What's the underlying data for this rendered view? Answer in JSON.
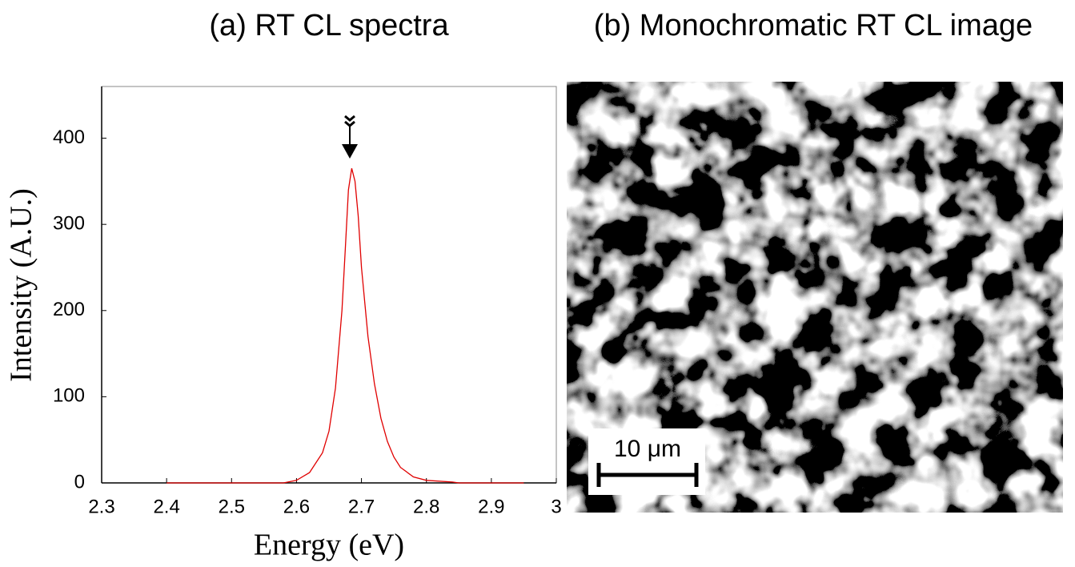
{
  "chart_data": [
    {
      "type": "line",
      "title": "(a) RT CL spectra",
      "xlabel": "Energy (eV)",
      "ylabel": "Intensity (A.U.)",
      "x": [
        2.4,
        2.58,
        2.6,
        2.62,
        2.64,
        2.65,
        2.66,
        2.67,
        2.675,
        2.68,
        2.685,
        2.69,
        2.695,
        2.7,
        2.71,
        2.72,
        2.73,
        2.74,
        2.75,
        2.76,
        2.78,
        2.8,
        2.84,
        2.85,
        2.95
      ],
      "values": [
        0,
        0,
        3,
        12,
        35,
        60,
        110,
        200,
        270,
        340,
        365,
        350,
        310,
        250,
        170,
        115,
        75,
        48,
        30,
        18,
        7,
        3,
        1,
        0,
        0
      ],
      "color": "#e00000",
      "xlim": [
        2.3,
        3
      ],
      "xticks": [
        2.3,
        2.4,
        2.5,
        2.6,
        2.7,
        2.8,
        2.9,
        3
      ],
      "ylim": [
        0,
        460
      ],
      "yticks": [
        0,
        100,
        200,
        300,
        400
      ]
    },
    {
      "type": "image",
      "title": "(b) Monochromatic RT CL image",
      "scale_bar_label": "10 μm"
    }
  ]
}
